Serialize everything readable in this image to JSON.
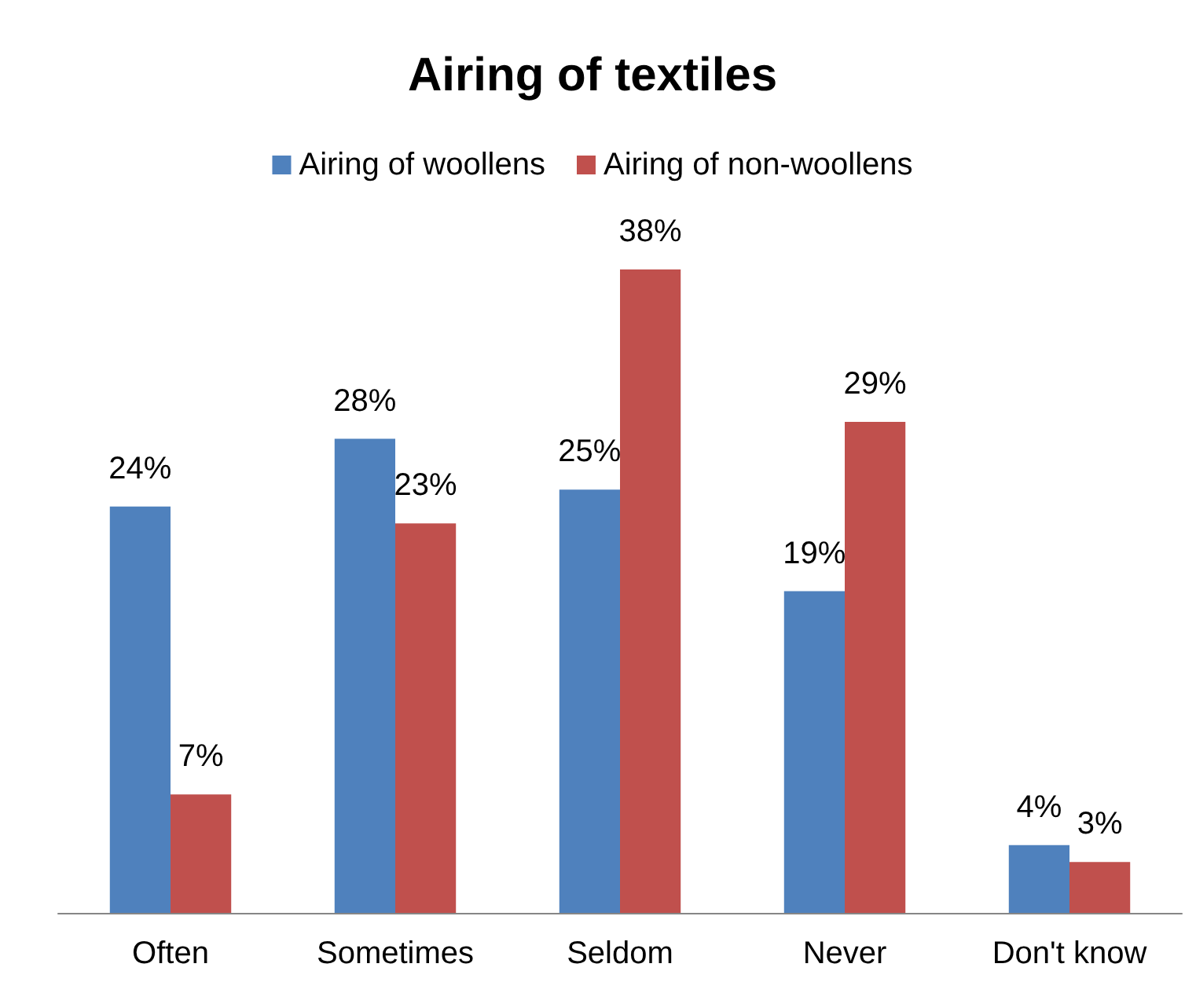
{
  "chart_data": {
    "type": "bar",
    "title": "Airing of textiles",
    "categories": [
      "Often",
      "Sometimes",
      "Seldom",
      "Never",
      "Don't know"
    ],
    "series": [
      {
        "name": "Airing of woollens",
        "color": "#4f81bd",
        "values": [
          24,
          28,
          25,
          19,
          4
        ],
        "value_labels": [
          "24%",
          "28%",
          "25%",
          "19%",
          "4%"
        ]
      },
      {
        "name": "Airing of non-woollens",
        "color": "#c0504d",
        "values": [
          7,
          23,
          38,
          29,
          3
        ],
        "value_labels": [
          "7%",
          "23%",
          "38%",
          "29%",
          "3%"
        ]
      }
    ],
    "legend": "top"
  }
}
